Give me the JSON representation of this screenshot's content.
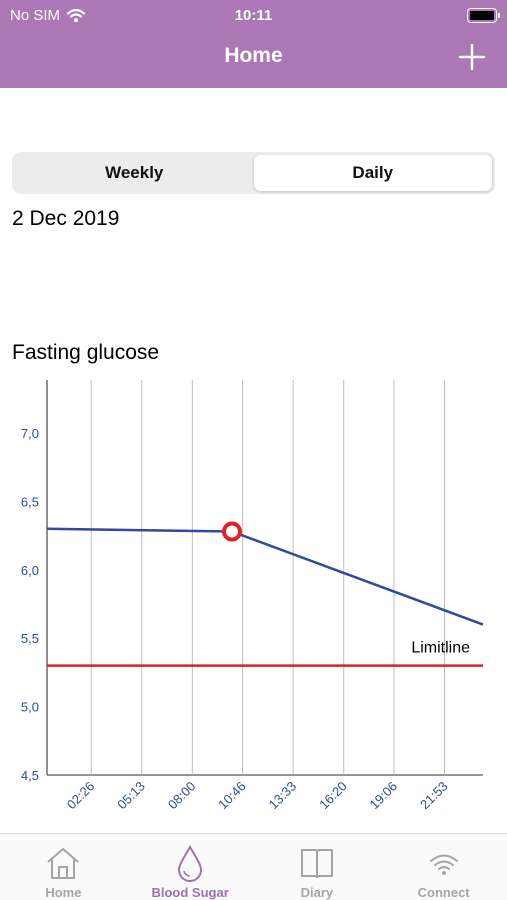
{
  "status_bar": {
    "carrier": "No SIM",
    "time": "10:11"
  },
  "header": {
    "title": "Home",
    "add_icon": "plus-icon"
  },
  "segmented": {
    "weekly": "Weekly",
    "daily": "Daily",
    "selected": "Daily"
  },
  "date": "2 Dec 2019",
  "chart_title": "Fasting glucose",
  "colors": {
    "header": "#ab77b5",
    "series": "#2f4aa0",
    "limit": "#e02020",
    "active_tab": "#a070b0"
  },
  "chart_data": {
    "type": "line",
    "title": "Fasting glucose",
    "yticks": [
      "4,5",
      "5,0",
      "5,5",
      "6,0",
      "6,5",
      "7,0"
    ],
    "ylim": [
      4.5,
      7.3
    ],
    "xticks": [
      "02:26",
      "05:13",
      "08:00",
      "10:46",
      "13:33",
      "16:20",
      "19:06",
      "21:53"
    ],
    "series": [
      {
        "points": [
          {
            "x": "00:00",
            "y": 6.3
          },
          {
            "x": "10:11",
            "y": 6.28,
            "highlighted": true
          },
          {
            "x": "24:00",
            "y": 5.6
          }
        ]
      }
    ],
    "limitline": {
      "label": "Limitline",
      "value": 5.3
    },
    "grid": "vertical"
  },
  "tabs": [
    {
      "label": "Home",
      "icon": "house-icon",
      "active": false
    },
    {
      "label": "Blood Sugar",
      "icon": "drop-icon",
      "active": true
    },
    {
      "label": "Diary",
      "icon": "book-icon",
      "active": false
    },
    {
      "label": "Connect",
      "icon": "wifi-icon",
      "active": false
    }
  ]
}
